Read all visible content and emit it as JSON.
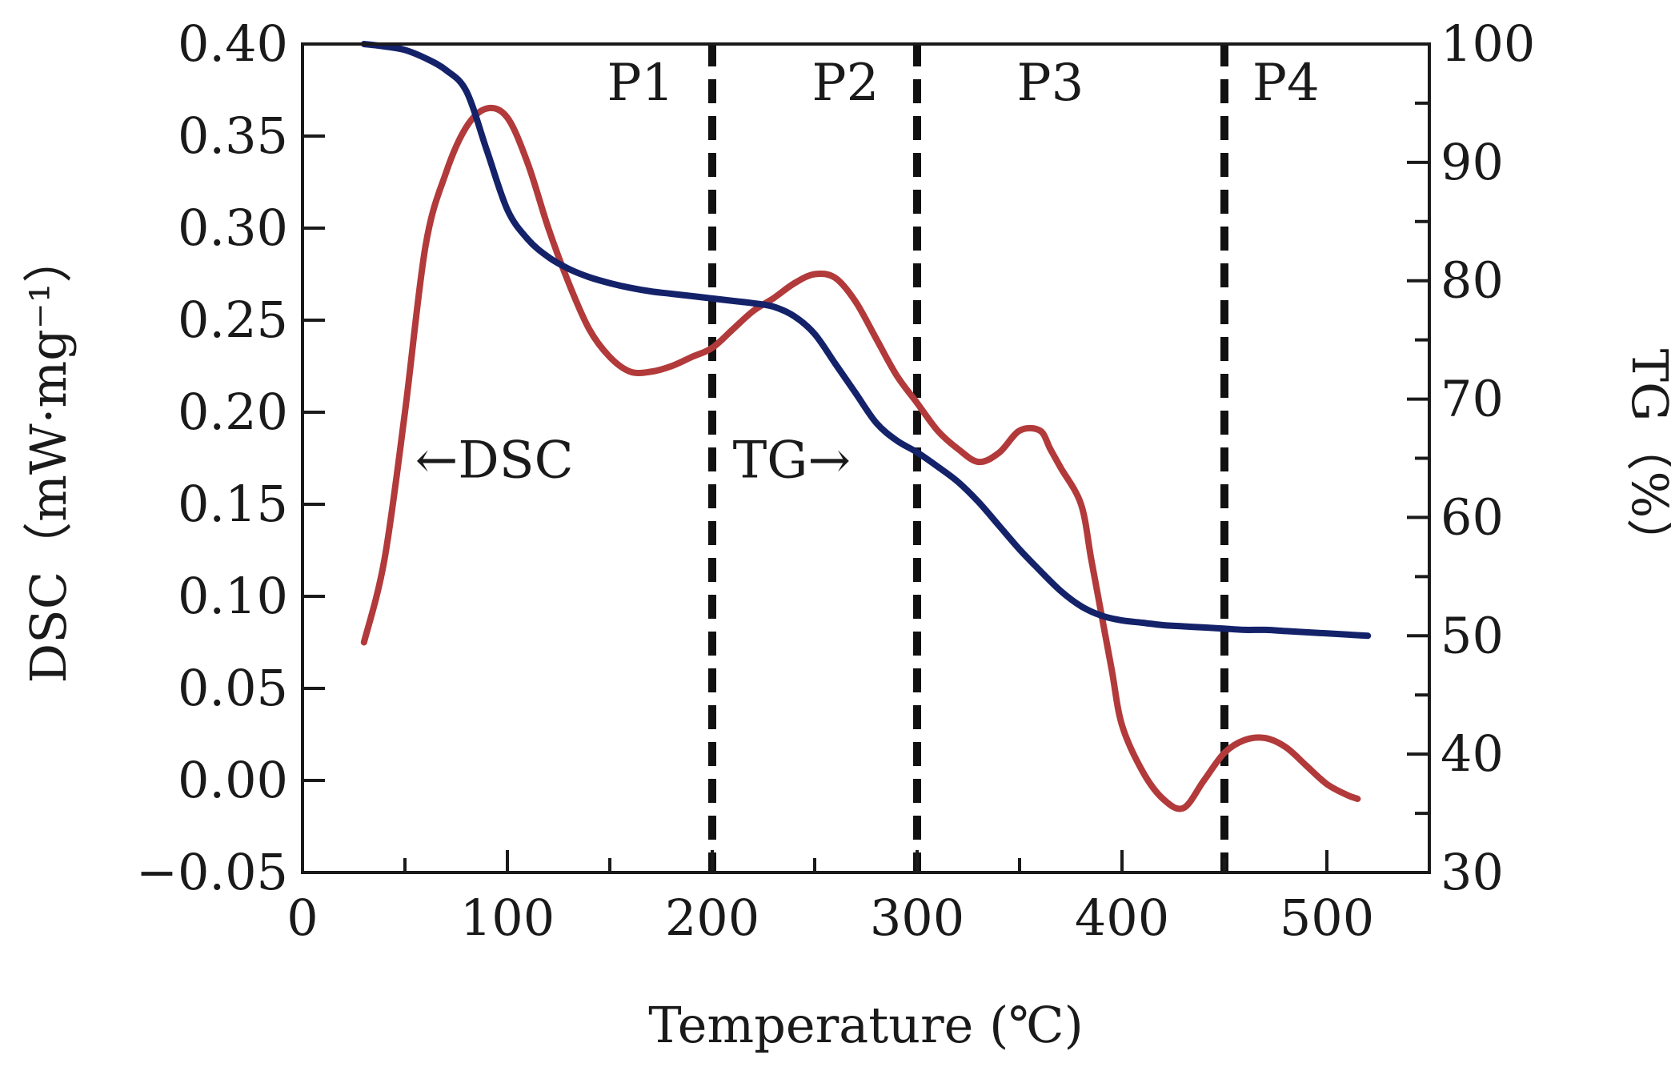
{
  "chart_data": {
    "type": "line",
    "xlabel": "Temperature (℃)",
    "ylabel_left": "DSC（mW·mg⁻¹）",
    "ylabel_right": "TG（%）",
    "xlim": [
      0,
      550
    ],
    "ylim_left": [
      -0.05,
      0.4
    ],
    "ylim_right": [
      30,
      100
    ],
    "x_ticks": [
      "0",
      "100",
      "200",
      "300",
      "400",
      "500"
    ],
    "y_left_ticks": [
      "0.40",
      "0.35",
      "0.30",
      "0.25",
      "0.20",
      "0.15",
      "0.10",
      "0.05",
      "0.00",
      "−0.05"
    ],
    "y_right_ticks": [
      "100",
      "90",
      "80",
      "70",
      "60",
      "50",
      "40",
      "30"
    ],
    "grid": false,
    "dividers": [
      {
        "x": 200
      },
      {
        "x": 300
      },
      {
        "x": 450
      }
    ],
    "phase_labels": [
      {
        "label": "P1",
        "x": 165
      },
      {
        "label": "P2",
        "x": 265
      },
      {
        "label": "P3",
        "x": 365
      },
      {
        "label": "P4",
        "x": 480
      }
    ],
    "series": [
      {
        "name": "DSC",
        "axis": "left",
        "color": "#b23a3a",
        "x": [
          30,
          40,
          50,
          60,
          70,
          80,
          90,
          100,
          110,
          120,
          130,
          140,
          150,
          160,
          170,
          180,
          190,
          200,
          210,
          220,
          230,
          240,
          250,
          260,
          270,
          280,
          290,
          300,
          310,
          320,
          330,
          340,
          350,
          360,
          365,
          370,
          380,
          385,
          390,
          395,
          400,
          410,
          420,
          430,
          440,
          450,
          460,
          470,
          480,
          490,
          500,
          510,
          515
        ],
        "values": [
          0.075,
          0.12,
          0.2,
          0.29,
          0.33,
          0.355,
          0.365,
          0.36,
          0.335,
          0.3,
          0.27,
          0.245,
          0.23,
          0.222,
          0.222,
          0.225,
          0.23,
          0.235,
          0.245,
          0.255,
          0.262,
          0.27,
          0.275,
          0.273,
          0.26,
          0.24,
          0.22,
          0.205,
          0.19,
          0.18,
          0.173,
          0.178,
          0.19,
          0.19,
          0.18,
          0.17,
          0.15,
          0.12,
          0.09,
          0.06,
          0.03,
          0.005,
          -0.01,
          -0.015,
          0.0,
          0.015,
          0.022,
          0.023,
          0.018,
          0.008,
          -0.002,
          -0.008,
          -0.01
        ]
      },
      {
        "name": "TG",
        "axis": "right",
        "color": "#14226a",
        "x": [
          30,
          40,
          50,
          60,
          70,
          80,
          90,
          100,
          110,
          120,
          130,
          140,
          150,
          160,
          170,
          180,
          190,
          200,
          210,
          220,
          230,
          240,
          250,
          260,
          270,
          280,
          290,
          300,
          310,
          320,
          330,
          340,
          350,
          360,
          370,
          380,
          390,
          400,
          410,
          420,
          430,
          440,
          450,
          460,
          470,
          480,
          490,
          500,
          510,
          520
        ],
        "values": [
          100,
          99.8,
          99.5,
          98.8,
          97.8,
          96,
          91,
          86,
          83.5,
          82,
          81,
          80.3,
          79.8,
          79.4,
          79.1,
          78.9,
          78.7,
          78.5,
          78.3,
          78.1,
          77.8,
          77,
          75.5,
          73,
          70.5,
          68,
          66.5,
          65.5,
          64.3,
          63,
          61.3,
          59.3,
          57.3,
          55.5,
          53.8,
          52.5,
          51.7,
          51.3,
          51.1,
          50.9,
          50.8,
          50.7,
          50.6,
          50.5,
          50.5,
          50.4,
          50.3,
          50.2,
          50.1,
          50.0
        ]
      }
    ],
    "annotations": [
      {
        "text": "←DSC",
        "x": 55,
        "y": 0.175,
        "axis": "left"
      },
      {
        "text": "TG→",
        "x": 210,
        "y": 0.175,
        "axis": "left"
      }
    ]
  }
}
